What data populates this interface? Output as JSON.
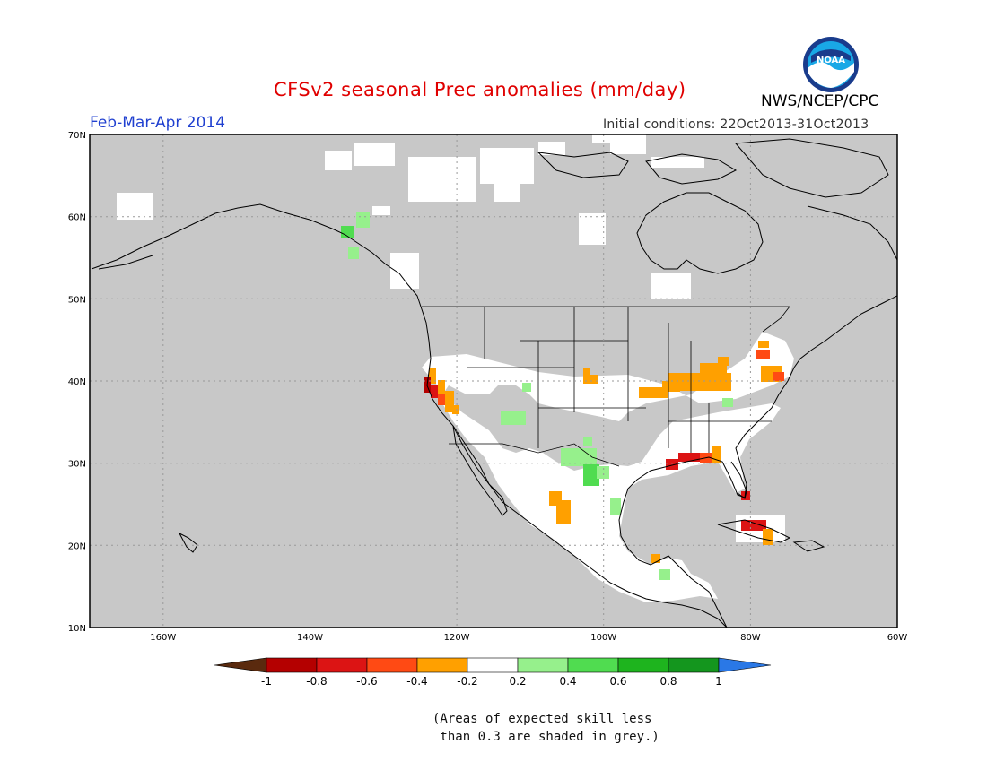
{
  "header": {
    "title": "CFSv2 seasonal Prec anomalies (mm/day)",
    "period": "Feb-Mar-Apr 2014",
    "initial_conditions": "Initial conditions: 22Oct2013-31Oct2013",
    "agency": "NWS/NCEP/CPC",
    "logo_text": "NOAA"
  },
  "map": {
    "lat_labels": [
      "70N",
      "60N",
      "50N",
      "40N",
      "30N",
      "20N",
      "10N"
    ],
    "lon_labels": [
      "160W",
      "140W",
      "120W",
      "100W",
      "80W",
      "60W"
    ],
    "lon_range": [
      -170,
      -60
    ],
    "lat_range": [
      10,
      70
    ],
    "colors": {
      "grey_mask": "#c8c8c8",
      "land_white": "#ffffff",
      "coast": "#000000",
      "grid": "#999999"
    }
  },
  "legend": {
    "labels": [
      "-1",
      "-0.8",
      "-0.6",
      "-0.4",
      "-0.2",
      "0.2",
      "0.4",
      "0.6",
      "0.8",
      "1"
    ],
    "bins": [
      {
        "color": "#5a2a0e"
      },
      {
        "color": "#b40000"
      },
      {
        "color": "#dc1414"
      },
      {
        "color": "#ff4a14"
      },
      {
        "color": "#ffa000"
      },
      {
        "color": "#ffffff"
      },
      {
        "color": "#96f08c"
      },
      {
        "color": "#50dc50"
      },
      {
        "color": "#1eb41e"
      },
      {
        "color": "#14961e"
      },
      {
        "color": "#2a78e6"
      }
    ]
  },
  "anomalies": [
    {
      "name": "california-coast",
      "lon": -123.5,
      "lat": 39.5,
      "value": -0.8
    },
    {
      "name": "central-california",
      "lon": -121,
      "lat": 36.5,
      "value": -0.4
    },
    {
      "name": "colorado",
      "lon": -104.5,
      "lat": 40,
      "value": -0.4
    },
    {
      "name": "ohio-valley",
      "lon": -86,
      "lat": 40,
      "value": -0.4
    },
    {
      "name": "mid-atlantic",
      "lon": -77,
      "lat": 40.5,
      "value": -0.4
    },
    {
      "name": "new-york",
      "lon": -78.5,
      "lat": 43,
      "value": -0.4
    },
    {
      "name": "gulf-coast",
      "lon": -88,
      "lat": 30.5,
      "value": -0.6
    },
    {
      "name": "south-florida",
      "lon": -81,
      "lat": 26,
      "value": -0.6
    },
    {
      "name": "cuba",
      "lon": -79,
      "lat": 21.5,
      "value": -0.6
    },
    {
      "name": "west-mexico",
      "lon": -105.5,
      "lat": 24,
      "value": -0.4
    },
    {
      "name": "alaska-panhandle",
      "lon": -134,
      "lat": 59,
      "value": 0.4
    },
    {
      "name": "arizona",
      "lon": -113,
      "lat": 35.5,
      "value": 0.4
    },
    {
      "name": "texas-mexico-border",
      "lon": -101,
      "lat": 28,
      "value": 0.6
    },
    {
      "name": "central-america",
      "lon": -90,
      "lat": 16,
      "value": 0.4
    }
  ],
  "footnote": {
    "line1": "(Areas of expected skill less",
    "line2": " than 0.3 are shaded in grey.)"
  }
}
